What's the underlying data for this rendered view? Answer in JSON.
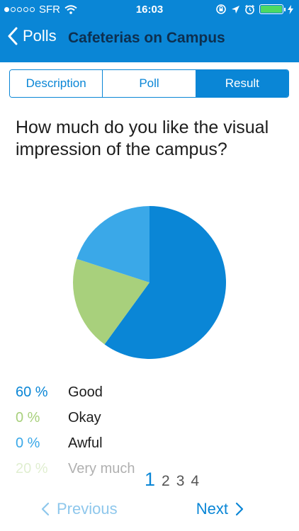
{
  "status_bar": {
    "carrier": "SFR",
    "time": "16:03"
  },
  "nav": {
    "back_label": "Polls",
    "title": "Cafeterias on Campus"
  },
  "tabs": [
    {
      "label": "Description",
      "active": false
    },
    {
      "label": "Poll",
      "active": false
    },
    {
      "label": "Result",
      "active": true
    }
  ],
  "question": "How much do you like the visual impression of the campus?",
  "results": [
    {
      "percent": "60 %",
      "label": "Good",
      "value": 60,
      "color": "#0a86d6"
    },
    {
      "percent": "0 %",
      "label": "Okay",
      "value": 0,
      "color": "#a8d07c"
    },
    {
      "percent": "0 %",
      "label": "Awful",
      "value": 0,
      "color": "#3aa8e8"
    },
    {
      "percent": "20 %",
      "label": "Very much",
      "value": 20,
      "color": "#c9e1a6"
    }
  ],
  "pager": {
    "pages": [
      "1",
      "2",
      "3",
      "4"
    ],
    "current": 1
  },
  "footer": {
    "previous_label": "Previous",
    "next_label": "Next"
  },
  "chart_data": {
    "type": "pie",
    "slices": [
      {
        "label": "Good",
        "value": 60,
        "color": "#0a86d6"
      },
      {
        "label": "Very much",
        "value": 20,
        "color": "#a8d07c"
      },
      {
        "label": "",
        "value": 20,
        "color": "#3aa8e8"
      }
    ]
  }
}
